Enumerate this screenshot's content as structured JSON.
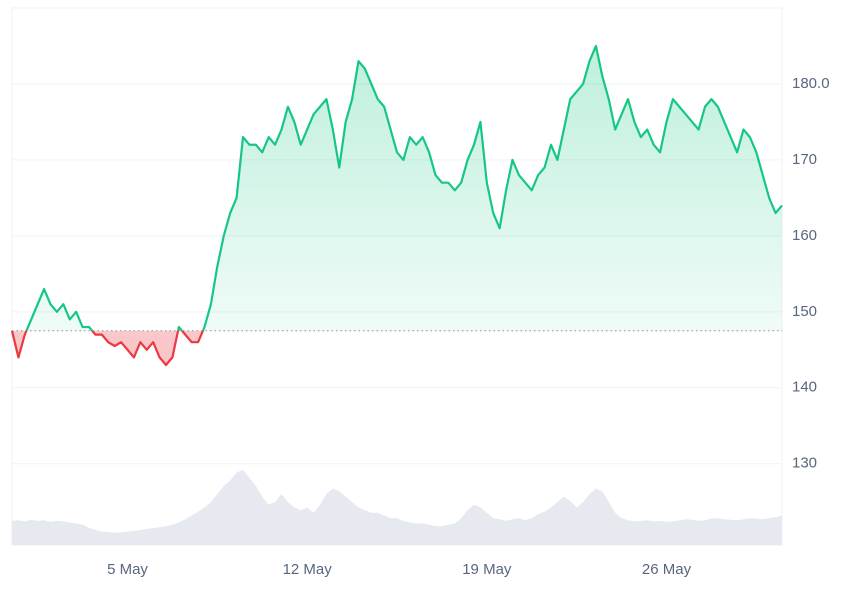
{
  "chart_data": {
    "type": "line",
    "categories": [
      null,
      null,
      null,
      null,
      null,
      null,
      null,
      null,
      null,
      null,
      null,
      null,
      null,
      null,
      null,
      null,
      null,
      null,
      "5 May",
      null,
      null,
      null,
      null,
      null,
      null,
      null,
      null,
      null,
      null,
      null,
      null,
      null,
      null,
      null,
      null,
      null,
      null,
      null,
      null,
      null,
      null,
      null,
      null,
      null,
      null,
      null,
      "12 May",
      null,
      null,
      null,
      null,
      null,
      null,
      null,
      null,
      null,
      null,
      null,
      null,
      null,
      null,
      null,
      null,
      null,
      null,
      null,
      null,
      null,
      null,
      null,
      null,
      null,
      null,
      null,
      "19 May",
      null,
      null,
      null,
      null,
      null,
      null,
      null,
      null,
      null,
      null,
      null,
      null,
      null,
      null,
      null,
      null,
      null,
      null,
      null,
      null,
      null,
      null,
      null,
      null,
      null,
      null,
      null,
      "26 May",
      null,
      null,
      null,
      null,
      null,
      null,
      null,
      null,
      null,
      null,
      null,
      null,
      null,
      null,
      null,
      null,
      null,
      null
    ],
    "values": [
      147.5,
      144,
      147,
      149,
      151,
      153,
      151,
      150,
      151,
      149,
      150,
      148,
      148,
      147,
      147,
      146,
      145.5,
      146,
      145,
      144,
      146,
      145,
      146,
      144,
      143,
      144,
      148,
      147,
      146,
      146,
      148,
      151,
      156,
      160,
      163,
      165,
      173,
      172,
      172,
      171,
      173,
      172,
      174,
      177,
      175,
      172,
      174,
      176,
      177,
      178,
      174,
      169,
      175,
      178,
      183,
      182,
      180,
      178,
      177,
      174,
      171,
      170,
      173,
      172,
      173,
      171,
      168,
      167,
      167,
      166,
      167,
      170,
      172,
      175,
      167,
      163,
      161,
      166,
      170,
      168,
      167,
      166,
      168,
      169,
      172,
      170,
      174,
      178,
      179,
      180,
      183,
      185,
      181,
      178,
      174,
      176,
      178,
      175,
      173,
      174,
      172,
      171,
      175,
      178,
      177,
      176,
      175,
      174,
      177,
      178,
      177,
      175,
      173,
      171,
      174,
      173,
      171,
      168,
      165,
      163,
      164
    ],
    "up_color": "#16c784",
    "down_color": "#ea3943",
    "volume": [
      4.5,
      4.6,
      4.4,
      4.7,
      4.5,
      4.6,
      4.3,
      4.5,
      4.4,
      4.2,
      4.0,
      3.8,
      3.2,
      2.8,
      2.5,
      2.4,
      2.3,
      2.4,
      2.5,
      2.6,
      2.8,
      3.0,
      3.2,
      3.3,
      3.5,
      3.8,
      4.2,
      4.8,
      5.5,
      6.2,
      7.0,
      8.0,
      9.5,
      11.0,
      12.0,
      13.5,
      14.0,
      12.5,
      11.0,
      9.0,
      7.5,
      8.0,
      9.5,
      8.0,
      7.0,
      6.5,
      7.0,
      6.0,
      7.5,
      9.5,
      10.5,
      10.0,
      9.0,
      8.0,
      7.0,
      6.5,
      6.0,
      6.0,
      5.5,
      5.0,
      5.0,
      4.5,
      4.2,
      4.0,
      4.0,
      3.8,
      3.5,
      3.5,
      3.8,
      4.0,
      5.0,
      6.5,
      7.5,
      7.0,
      6.0,
      5.0,
      4.8,
      4.5,
      4.8,
      5.0,
      4.6,
      5.0,
      5.8,
      6.2,
      7.0,
      8.0,
      9.0,
      8.2,
      7.0,
      8.0,
      9.5,
      10.5,
      10.0,
      8.0,
      6.0,
      5.0,
      4.6,
      4.4,
      4.5,
      4.6,
      4.4,
      4.5,
      4.3,
      4.4,
      4.6,
      4.8,
      4.7,
      4.5,
      4.6,
      4.9,
      5.0,
      4.8,
      4.7,
      4.6,
      4.8,
      5.0,
      4.9,
      4.8,
      5.0,
      5.2,
      5.5
    ],
    "volume_color": "#e6eaf0",
    "y2lim": [
      0,
      100
    ],
    "ylim": [
      119.3,
      190
    ],
    "yticks": [
      130,
      140,
      150,
      160,
      170,
      {
        "value": 180,
        "label": "180.0"
      }
    ],
    "grid": true
  }
}
